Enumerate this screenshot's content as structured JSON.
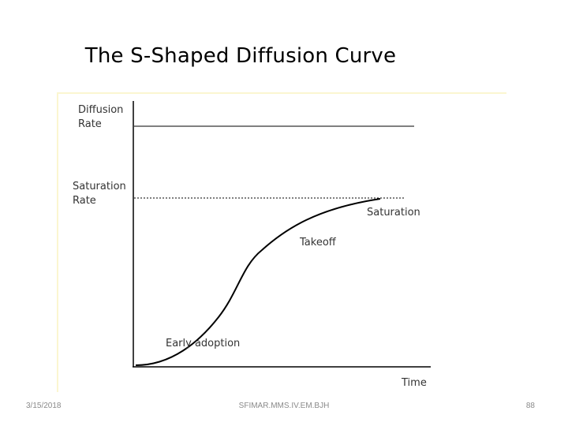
{
  "slide": {
    "title": "The S-Shaped Diffusion Curve",
    "footer_date": "3/15/2018",
    "footer_center": "SFIMAR.MMS.IV.EM.BJH",
    "page_number": "88"
  },
  "diagram": {
    "y_axis_label_line1": "Diffusion",
    "y_axis_label_line2": "Rate",
    "saturation_label_line1": "Saturation",
    "saturation_label_line2": "Rate",
    "x_axis_label": "Time",
    "stage_early": "Early adoption",
    "stage_takeoff": "Takeoff",
    "stage_saturation": "Saturation",
    "colors": {
      "frame": "#fbf6d0",
      "lines": "#000000",
      "text": "#333333"
    }
  }
}
